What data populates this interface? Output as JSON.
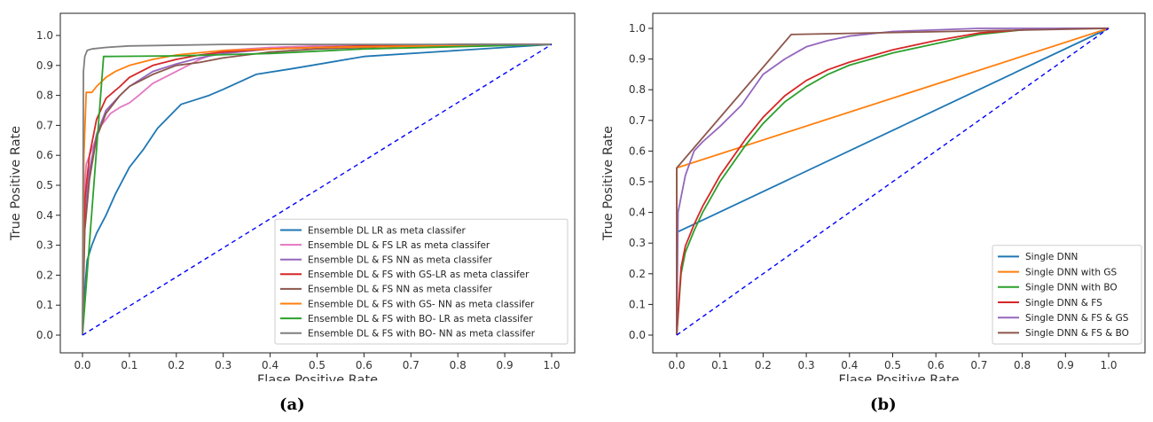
{
  "panels": {
    "a": "(a)",
    "b": "(b)"
  },
  "chart_data": [
    {
      "type": "line",
      "panel": "a",
      "xlabel": "Flase Positive Rate",
      "ylabel": "True Positive Rate",
      "xlim": [
        0,
        1.0
      ],
      "ylim": [
        0,
        1.0
      ],
      "xticks": [
        0.0,
        0.1,
        0.2,
        0.3,
        0.4,
        0.5,
        0.6,
        0.7,
        0.8,
        0.9,
        1.0
      ],
      "yticks": [
        0.0,
        0.1,
        0.2,
        0.3,
        0.4,
        0.5,
        0.6,
        0.7,
        0.8,
        0.9,
        1.0
      ],
      "legend_position": "lower-right",
      "grid": false,
      "series": [
        {
          "name": "Ensemble DL LR as meta classifer",
          "color": "#1f77b4",
          "x": [
            0,
            0.005,
            0.01,
            0.02,
            0.03,
            0.05,
            0.07,
            0.1,
            0.13,
            0.16,
            0.21,
            0.24,
            0.27,
            0.3,
            0.37,
            0.45,
            0.6,
            0.8,
            1.0
          ],
          "y": [
            0,
            0.15,
            0.25,
            0.3,
            0.34,
            0.4,
            0.47,
            0.56,
            0.62,
            0.69,
            0.77,
            0.785,
            0.8,
            0.82,
            0.87,
            0.89,
            0.93,
            0.95,
            0.97
          ]
        },
        {
          "name": "Ensemble DL & FS LR as meta classifer",
          "color": "#e377c2",
          "x": [
            0,
            0.003,
            0.008,
            0.02,
            0.04,
            0.06,
            0.08,
            0.1,
            0.12,
            0.15,
            0.2,
            0.25,
            0.3,
            0.4,
            0.5,
            0.6,
            0.8,
            1.0
          ],
          "y": [
            0,
            0.45,
            0.57,
            0.62,
            0.7,
            0.74,
            0.76,
            0.775,
            0.8,
            0.84,
            0.88,
            0.92,
            0.95,
            0.96,
            0.965,
            0.967,
            0.97,
            0.97
          ]
        },
        {
          "name": "Ensemble DL & FS NN as meta classifer",
          "color": "#9467bd",
          "x": [
            0,
            0.005,
            0.015,
            0.03,
            0.05,
            0.08,
            0.1,
            0.15,
            0.2,
            0.25,
            0.3,
            0.4,
            0.5,
            0.6,
            0.8,
            1.0
          ],
          "y": [
            0,
            0.4,
            0.55,
            0.67,
            0.75,
            0.8,
            0.83,
            0.88,
            0.905,
            0.925,
            0.94,
            0.955,
            0.96,
            0.965,
            0.97,
            0.97
          ]
        },
        {
          "name": "Ensemble DL & FS with GS-LR as meta classifer",
          "color": "#d62728",
          "x": [
            0,
            0.005,
            0.015,
            0.03,
            0.05,
            0.08,
            0.1,
            0.15,
            0.2,
            0.25,
            0.3,
            0.4,
            0.5,
            0.6,
            0.8,
            1.0
          ],
          "y": [
            0,
            0.45,
            0.6,
            0.72,
            0.79,
            0.83,
            0.86,
            0.9,
            0.92,
            0.935,
            0.945,
            0.955,
            0.96,
            0.965,
            0.97,
            0.97
          ]
        },
        {
          "name": "Ensemble DL & FS NN as meta classifer",
          "color": "#8c564b",
          "x": [
            0,
            0.005,
            0.015,
            0.03,
            0.05,
            0.08,
            0.1,
            0.15,
            0.2,
            0.25,
            0.3,
            0.4,
            0.5,
            0.6,
            0.8,
            1.0
          ],
          "y": [
            0,
            0.35,
            0.52,
            0.66,
            0.74,
            0.8,
            0.83,
            0.87,
            0.9,
            0.91,
            0.925,
            0.945,
            0.955,
            0.96,
            0.97,
            0.97
          ]
        },
        {
          "name": "Ensemble DL & FS with GS- NN as meta classifer",
          "color": "#ff7f0e",
          "x": [
            0,
            0.003,
            0.008,
            0.02,
            0.03,
            0.05,
            0.07,
            0.1,
            0.15,
            0.2,
            0.3,
            0.5,
            1.0
          ],
          "y": [
            0,
            0.6,
            0.81,
            0.81,
            0.83,
            0.86,
            0.88,
            0.9,
            0.92,
            0.935,
            0.95,
            0.96,
            0.97
          ]
        },
        {
          "name": "Ensemble DL & FS with BO- LR as meta classifer",
          "color": "#2ca02c",
          "x": [
            0,
            0.045,
            0.05,
            0.2,
            0.4,
            0.6,
            1.0
          ],
          "y": [
            0,
            0.93,
            0.93,
            0.932,
            0.94,
            0.955,
            0.97
          ]
        },
        {
          "name": "Ensemble DL & FS with BO- NN as meta classifer",
          "color": "#7f7f7f",
          "x": [
            0,
            0.002,
            0.005,
            0.01,
            0.02,
            0.05,
            0.1,
            0.3,
            0.6,
            1.0
          ],
          "y": [
            0,
            0.88,
            0.93,
            0.95,
            0.955,
            0.96,
            0.965,
            0.97,
            0.97,
            0.97
          ]
        },
        {
          "name": "",
          "color": "#0000ff",
          "dashed": true,
          "x": [
            0,
            1.0
          ],
          "y": [
            0,
            0.97
          ]
        }
      ]
    },
    {
      "type": "line",
      "panel": "b",
      "xlabel": "Flase Positive Rate",
      "ylabel": "True Positive Rate",
      "xlim": [
        0,
        1.0
      ],
      "ylim": [
        0,
        1.0
      ],
      "xticks": [
        0.0,
        0.1,
        0.2,
        0.3,
        0.4,
        0.5,
        0.6,
        0.7,
        0.8,
        0.9,
        1.0
      ],
      "yticks": [
        0.0,
        0.1,
        0.2,
        0.3,
        0.4,
        0.5,
        0.6,
        0.7,
        0.8,
        0.9,
        1.0
      ],
      "legend_position": "lower-right",
      "grid": false,
      "series": [
        {
          "name": "Single DNN",
          "color": "#1f77b4",
          "x": [
            0,
            0.0,
            1.0
          ],
          "y": [
            0,
            0.335,
            1.0
          ]
        },
        {
          "name": "Single DNN with GS",
          "color": "#ff7f0e",
          "x": [
            0,
            0.0,
            1.0
          ],
          "y": [
            0,
            0.545,
            1.0
          ]
        },
        {
          "name": "Single DNN with BO",
          "color": "#2ca02c",
          "x": [
            0,
            0.01,
            0.02,
            0.04,
            0.06,
            0.08,
            0.1,
            0.13,
            0.16,
            0.2,
            0.25,
            0.3,
            0.35,
            0.4,
            0.5,
            0.6,
            0.7,
            0.8,
            0.9,
            1.0
          ],
          "y": [
            0,
            0.2,
            0.27,
            0.34,
            0.4,
            0.45,
            0.5,
            0.56,
            0.62,
            0.69,
            0.76,
            0.81,
            0.85,
            0.88,
            0.92,
            0.95,
            0.98,
            0.995,
            1.0,
            1.0
          ]
        },
        {
          "name": "Single DNN & FS",
          "color": "#d62728",
          "x": [
            0,
            0.01,
            0.02,
            0.04,
            0.06,
            0.08,
            0.1,
            0.13,
            0.16,
            0.2,
            0.25,
            0.3,
            0.35,
            0.4,
            0.5,
            0.6,
            0.7,
            0.8,
            0.9,
            1.0
          ],
          "y": [
            0,
            0.22,
            0.29,
            0.36,
            0.42,
            0.47,
            0.52,
            0.58,
            0.64,
            0.71,
            0.78,
            0.83,
            0.865,
            0.89,
            0.93,
            0.96,
            0.985,
            0.995,
            1.0,
            1.0
          ]
        },
        {
          "name": "Single DNN & FS & GS",
          "color": "#9467bd",
          "x": [
            0,
            0.003,
            0.01,
            0.02,
            0.04,
            0.06,
            0.1,
            0.15,
            0.2,
            0.25,
            0.3,
            0.35,
            0.4,
            0.5,
            0.7,
            1.0
          ],
          "y": [
            0,
            0.4,
            0.45,
            0.52,
            0.6,
            0.63,
            0.68,
            0.75,
            0.85,
            0.9,
            0.94,
            0.96,
            0.975,
            0.99,
            1.0,
            1.0
          ]
        },
        {
          "name": "Single DNN & FS & BO",
          "color": "#8c564b",
          "x": [
            0,
            0.0,
            0.265,
            1.0
          ],
          "y": [
            0,
            0.545,
            0.98,
            1.0
          ]
        },
        {
          "name": "",
          "color": "#0000ff",
          "dashed": true,
          "x": [
            0,
            1.0
          ],
          "y": [
            0,
            1.0
          ]
        }
      ]
    }
  ]
}
